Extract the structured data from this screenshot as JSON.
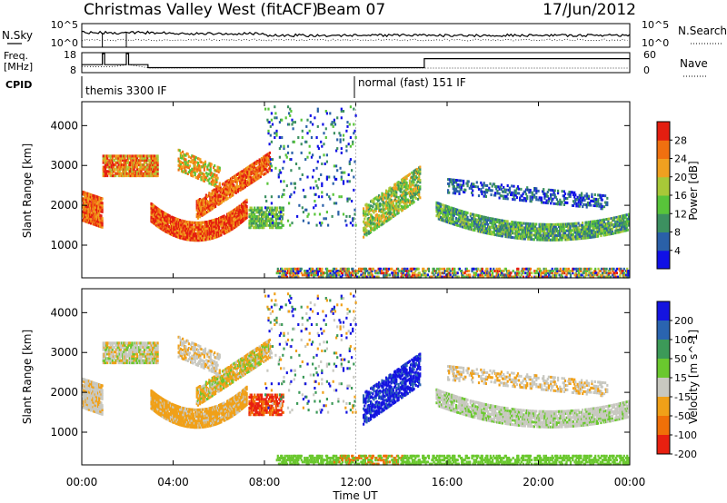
{
  "chart_data": {
    "type": "heatmap",
    "header": {
      "station": "Christmas Valley West (fitACF)",
      "beam": "Beam 07",
      "date": "17/Jun/2012"
    },
    "xaxis": {
      "label": "Time UT",
      "ticks": [
        "00:00",
        "04:00",
        "08:00",
        "12:00",
        "16:00",
        "20:00",
        "00:00"
      ],
      "range_hours": [
        0,
        24
      ]
    },
    "top_panels": {
      "nsky": {
        "left_label": "N.Sky",
        "left_ticks": [
          "10^5",
          "10^0"
        ],
        "right_label": "N.Search",
        "right_ticks": [
          "10^5",
          "10^0"
        ]
      },
      "freq": {
        "left_label_1": "Freq.",
        "left_label_2": "[MHz]",
        "left_ticks": [
          "18",
          "8"
        ],
        "right_label": "Nave",
        "right_ticks": [
          "60",
          "0"
        ],
        "freq_steps": [
          {
            "t0": 0,
            "t1": 0.9,
            "value": 12.0
          },
          {
            "t0": 0.9,
            "t1": 1.0,
            "value": 17.5
          },
          {
            "t0": 1.0,
            "t1": 1.95,
            "value": 12.0
          },
          {
            "t0": 1.95,
            "t1": 2.05,
            "value": 17.5
          },
          {
            "t0": 2.05,
            "t1": 2.9,
            "value": 12.0
          },
          {
            "t0": 2.9,
            "t1": 15.0,
            "value": 10.5
          },
          {
            "t0": 15.0,
            "t1": 24.0,
            "value": 15.0
          }
        ]
      },
      "cpid": {
        "label": "CPID",
        "modes": [
          {
            "t": 0.0,
            "text": "themis 3300 IF"
          },
          {
            "t": 11.9,
            "text": "normal (fast) 151 IF"
          }
        ]
      }
    },
    "power_panel": {
      "ylabel": "Slant Range [km]",
      "yticks": [
        1000,
        2000,
        3000,
        4000
      ],
      "ylim": [
        180,
        4600
      ],
      "colorbar_label": "Power [dB]",
      "colorbar_ticks": [
        4,
        8,
        12,
        16,
        20,
        24,
        28
      ],
      "colorbar_colors": [
        "#1010e6",
        "#2a60a8",
        "#3c9060",
        "#58c43a",
        "#a8c838",
        "#f0a020",
        "#f07010",
        "#e41e10"
      ]
    },
    "velocity_panel": {
      "ylabel": "Slant Range [km]",
      "yticks": [
        1000,
        2000,
        3000,
        4000
      ],
      "ylim": [
        180,
        4600
      ],
      "colorbar_label": "Velocity [m s^-1]",
      "colorbar_ticks": [
        200,
        100,
        50,
        15,
        -15,
        -50,
        -100,
        -200
      ],
      "colorbar_colors": [
        "#1414e0",
        "#2a64b0",
        "#3c9a58",
        "#6ac82e",
        "#c8c8c0",
        "#f0a018",
        "#f07008",
        "#e82010"
      ]
    }
  }
}
